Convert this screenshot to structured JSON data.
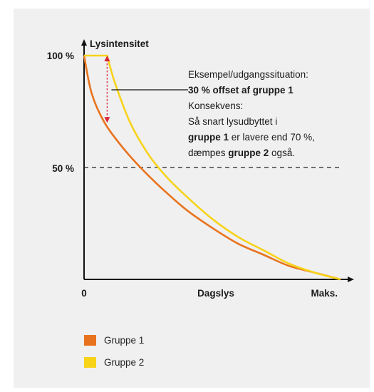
{
  "chart_data": {
    "type": "line",
    "ylabel": "Lysintensitet",
    "xlabel": "Dagslys",
    "y_ticks": [
      "100 %",
      "50 %"
    ],
    "x_ticks": [
      "0",
      "Maks."
    ],
    "reference_line": {
      "y": 50,
      "style": "dashed"
    },
    "xlim": [
      0,
      100
    ],
    "ylim": [
      0,
      100
    ],
    "series": [
      {
        "name": "Gruppe 1",
        "color": "#e8731e",
        "x": [
          0,
          3,
          8,
          15,
          22,
          30,
          40,
          50,
          60,
          70,
          80,
          90,
          100
        ],
        "y": [
          100,
          83,
          70,
          59,
          50,
          41,
          31,
          23,
          16,
          11,
          6,
          3,
          0
        ]
      },
      {
        "name": "Gruppe 2",
        "color": "#f7d31a",
        "x": [
          0,
          9,
          12,
          18,
          25,
          32,
          40,
          50,
          60,
          70,
          80,
          90,
          100
        ],
        "y": [
          100,
          100,
          88,
          70,
          56,
          46,
          37,
          27,
          19,
          13,
          7,
          3,
          0
        ]
      }
    ],
    "offset_marker": {
      "x": 9,
      "y_from": 100,
      "y_to": 70,
      "color": "#d8263a"
    }
  },
  "annotation": {
    "line1": "Eksempel/udgangssituation:",
    "line2": "30 % offset af gruppe 1",
    "line3": "Konsekvens:",
    "line4": "Så snart lysudbyttet i",
    "line5_bold": "gruppe 1",
    "line5_rest": " er lavere end 70 %,",
    "line6_pre": "dæmpes ",
    "line6_bold": "gruppe 2",
    "line6_post": " også."
  },
  "legend": {
    "items": [
      {
        "label": "Gruppe 1",
        "color": "#e8731e"
      },
      {
        "label": "Gruppe 2",
        "color": "#f7d31a"
      }
    ]
  }
}
